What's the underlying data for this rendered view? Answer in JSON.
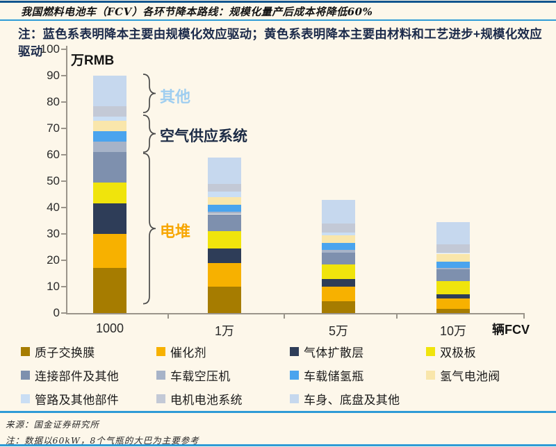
{
  "page": {
    "title": "我国燃料电池车（FCV）各环节降本路线：规模化量产后成本将降低60%",
    "note": "注：蓝色系表明降本主要由规模化效应驱动；黄色系表明降本主要由材料和工艺进步+规模化效应驱动",
    "source": "来源：国金证券研究所",
    "footnote": "注：数据以60kW，8个气瓶的大巴为主要参考",
    "colors": {
      "background": "#fdf7ea",
      "top_rule": "#12558e",
      "blue_rule": "#2e9bd6",
      "note_text": "#1b2a4a"
    }
  },
  "chart_data": {
    "type": "bar",
    "stacked": true,
    "title": "我国燃料电池车（FCV）各环节降本路线",
    "xlabel": "辆FCV",
    "ylabel": "万RMB",
    "ylim": [
      0,
      100
    ],
    "yticks": [
      0,
      10,
      20,
      30,
      40,
      50,
      60,
      70,
      80,
      90,
      100
    ],
    "grid": false,
    "legend_position": "bottom",
    "categories": [
      "1000",
      "1万",
      "5万",
      "10万"
    ],
    "series": [
      {
        "name": "质子交换膜",
        "color": "#a67c00",
        "values": [
          17,
          10,
          4.5,
          1.5
        ]
      },
      {
        "name": "催化剂",
        "color": "#f7b100",
        "values": [
          13,
          9,
          5.5,
          4
        ]
      },
      {
        "name": "气体扩散层",
        "color": "#2e3d58",
        "values": [
          11.5,
          5.5,
          3,
          1.5
        ]
      },
      {
        "name": "双极板",
        "color": "#f0e40c",
        "values": [
          8,
          6.5,
          5.5,
          5
        ]
      },
      {
        "name": "连接部件及其他",
        "color": "#7e90ae",
        "values": [
          11.5,
          6.5,
          4.5,
          4.5
        ]
      },
      {
        "name": "车载空压机",
        "color": "#a7b3c8",
        "values": [
          4,
          1,
          1,
          0.5
        ]
      },
      {
        "name": "车载储氢瓶",
        "color": "#4aa4ee",
        "values": [
          4,
          2.5,
          2.5,
          2.5
        ]
      },
      {
        "name": "氢气电池阀",
        "color": "#f9e6ab",
        "values": [
          4,
          3,
          3,
          3
        ]
      },
      {
        "name": "管路及其他部件",
        "color": "#cadef4",
        "values": [
          1.5,
          2,
          1,
          0.5
        ]
      },
      {
        "name": "电机电池系统",
        "color": "#c3c9d6",
        "values": [
          4,
          3,
          3.5,
          3
        ]
      },
      {
        "name": "车身、底盘及其他",
        "color": "#c6d8ee",
        "values": [
          11.5,
          10,
          9,
          8.5
        ]
      }
    ],
    "totals": [
      90,
      59,
      43,
      34.5
    ],
    "annotations": [
      {
        "label": "其他",
        "color": "#9fcef0",
        "from": 76,
        "to": 90.5
      },
      {
        "label": "空气供应系统",
        "color": "#1c2b45",
        "from": 61,
        "to": 75
      },
      {
        "label": "电堆",
        "color": "#f7a600",
        "from": 3.5,
        "to": 60.5
      }
    ]
  }
}
